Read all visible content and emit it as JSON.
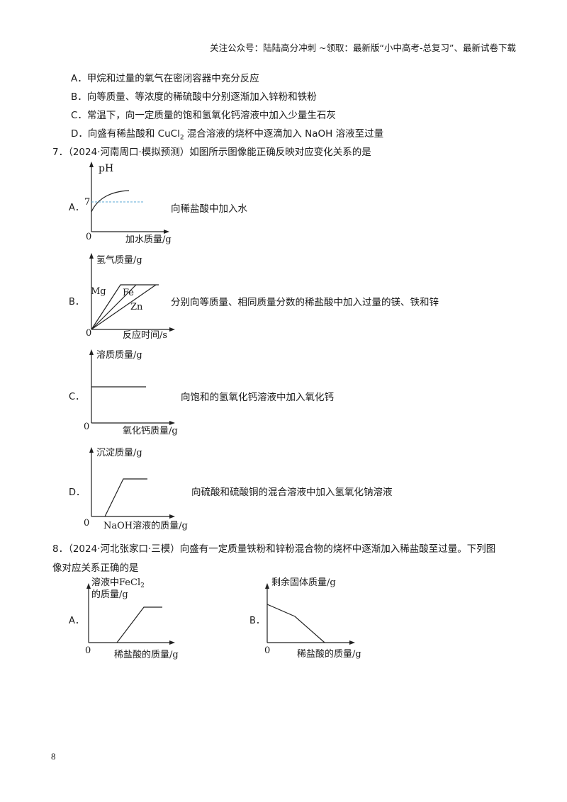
{
  "header": "关注公众号：陆陆高分冲刺 ~领取：最新版“小中高考-总复习”、最新试卷下载",
  "prev_options": {
    "A": "A．甲烷和过量的氧气在密闭容器中充分反应",
    "B": "B．向等质量、等浓度的稀硫酸中分别逐渐加入锌粉和铁粉",
    "C": "C．常温下，向一定质量的饱和氢氧化钙溶液中加入少量生石灰",
    "D_pre": "D．向盛有稀盐酸和 CuCl",
    "D_sub": "2",
    "D_post": " 混合溶液的烧杯中逐滴加入 NaOH 溶液至过量"
  },
  "q7": {
    "stem": "7．（2024·河南周口·模拟预测）如图所示图像能正确反映对应变化关系的是",
    "A": {
      "label": "A．",
      "ylabel": "pH",
      "xlabel": "加水质量/g",
      "origin": "0",
      "mark": "7",
      "desc": "向稀盐酸中加入水"
    },
    "B": {
      "label": "B．",
      "ylabel": "氢气质量/g",
      "xlabel": "反应时间/s",
      "origin": "0",
      "l1": "Mg",
      "l2": "Fe",
      "l3": "Zn",
      "desc": "分别向等质量、相同质量分数的稀盐酸中加入过量的镁、铁和锌"
    },
    "C": {
      "label": "C．",
      "ylabel": "溶质质量/g",
      "xlabel": "氧化钙质量/g",
      "origin": "0",
      "desc": "向饱和的氢氧化钙溶液中加入氧化钙"
    },
    "D": {
      "label": "D．",
      "ylabel": "沉淀质量/g",
      "xlabel": "NaOH溶液的质量/g",
      "origin": "0",
      "desc": "向硫酸和硫酸铜的混合溶液中加入氢氧化钠溶液"
    }
  },
  "q8": {
    "stem1": "8．（2024·河北张家口·三模）向盛有一定质量铁粉和锌粉混合物的烧杯中逐渐加入稀盐酸至过量。下列图",
    "stem2": "像对应关系正确的是",
    "A": {
      "label": "A．",
      "ylabel1": "溶液中FeCl",
      "ylabel1_sub": "2",
      "ylabel2": "的质量/g",
      "xlabel": "稀盐酸的质量/g",
      "origin": "0"
    },
    "B": {
      "label": "B．",
      "ylabel": "剩余固体质量/g",
      "xlabel": "稀盐酸的质量/g",
      "origin": "0"
    }
  },
  "page_number": "8"
}
